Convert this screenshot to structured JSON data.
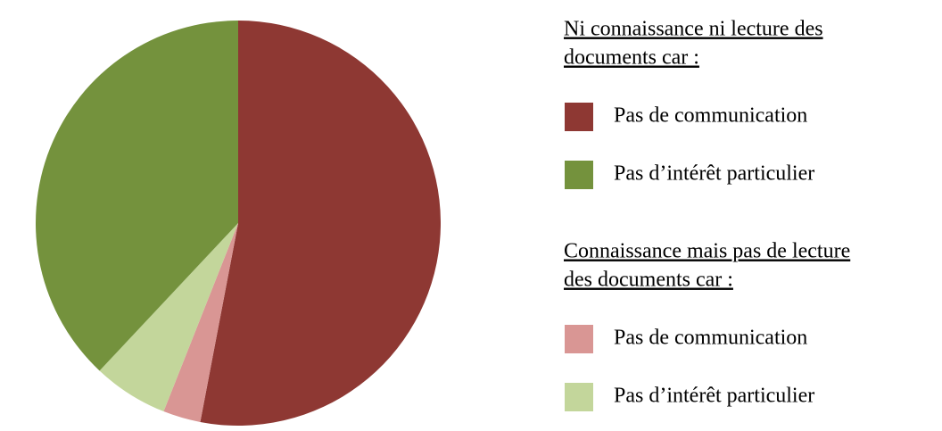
{
  "chart_data": {
    "type": "pie",
    "groups": [
      {
        "title": [
          "Ni connaissance ni lecture des",
          "documents car :"
        ],
        "categories": [
          "Pas de communication",
          "Pas d’intérêt particulier"
        ],
        "values": [
          53,
          38
        ],
        "colors": [
          "#8e3833",
          "#74923d"
        ]
      },
      {
        "title": [
          "Connaissance mais pas de lecture",
          "des documents car :"
        ],
        "categories": [
          "Pas de communication",
          "Pas d’intérêt particulier"
        ],
        "values": [
          3,
          6
        ],
        "colors": [
          "#d99694",
          "#c3d69b"
        ]
      }
    ]
  }
}
